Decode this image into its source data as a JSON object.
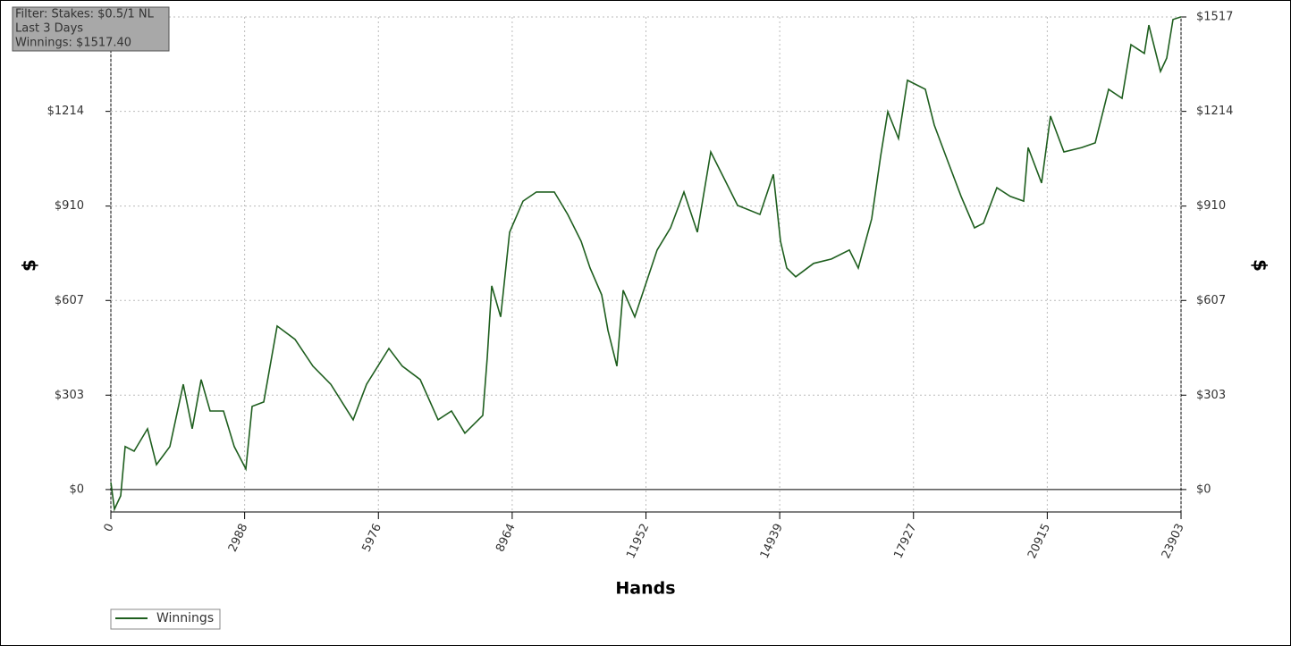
{
  "chart_data": {
    "type": "line",
    "annotation": [
      "Filter: Stakes: $0.5/1 NL",
      "Last 3 Days",
      "Winnings: $1517.40"
    ],
    "xlabel": "Hands",
    "ylabel": "$",
    "x": [
      0,
      80,
      220,
      319,
      519,
      819,
      1018,
      1318,
      1617,
      1817,
      2017,
      2217,
      2516,
      2756,
      3015,
      3155,
      3415,
      3714,
      4114,
      4513,
      4912,
      5411,
      5711,
      6210,
      6510,
      6909,
      7309,
      7608,
      7908,
      8307,
      8407,
      8507,
      8706,
      8906,
      9206,
      9505,
      9905,
      10204,
      10504,
      10703,
      10963,
      11103,
      11302,
      11442,
      11702,
      11901,
      12201,
      12500,
      12800,
      13100,
      13399,
      13699,
      13998,
      14497,
      14797,
      14957,
      15097,
      15296,
      15696,
      16095,
      16494,
      16694,
      16994,
      17193,
      17353,
      17593,
      17793,
      18192,
      18392,
      18691,
      18991,
      19290,
      19490,
      19789,
      20089,
      20389,
      20488,
      20788,
      20988,
      21287,
      21686,
      21986,
      22285,
      22585,
      22785,
      23084,
      23184,
      23444,
      23584,
      23723,
      23903
    ],
    "series": [
      {
        "name": "Winnings",
        "color": "#1e5e1e",
        "values": [
          23,
          -63,
          -20,
          138,
          123,
          195,
          80,
          138,
          338,
          195,
          353,
          252,
          252,
          138,
          66,
          267,
          281,
          525,
          482,
          396,
          338,
          224,
          338,
          453,
          396,
          353,
          224,
          252,
          181,
          238,
          424,
          654,
          554,
          826,
          926,
          955,
          955,
          883,
          797,
          711,
          625,
          511,
          396,
          640,
          554,
          640,
          769,
          840,
          955,
          826,
          1084,
          998,
          912,
          883,
          1012,
          797,
          711,
          683,
          726,
          740,
          769,
          711,
          869,
          1070,
          1213,
          1127,
          1314,
          1285,
          1170,
          1055,
          941,
          840,
          855,
          969,
          941,
          926,
          1098,
          984,
          1199,
          1084,
          1098,
          1113,
          1285,
          1256,
          1428,
          1400,
          1491,
          1342,
          1385,
          1509,
          1517.4
        ]
      }
    ],
    "xlim": [
      0,
      23903
    ],
    "xticks": [
      0,
      2988,
      5976,
      8964,
      11952,
      14939,
      17927,
      20915,
      23903
    ],
    "ylim": [
      -72,
      1517
    ],
    "yticks": [
      {
        "value": 0,
        "label": "$0"
      },
      {
        "value": 303,
        "label": "$303"
      },
      {
        "value": 607,
        "label": "$607"
      },
      {
        "value": 910,
        "label": "$910"
      },
      {
        "value": 1214,
        "label": "$1214"
      },
      {
        "value": 1517,
        "label": "$1517"
      }
    ],
    "grid": true
  }
}
